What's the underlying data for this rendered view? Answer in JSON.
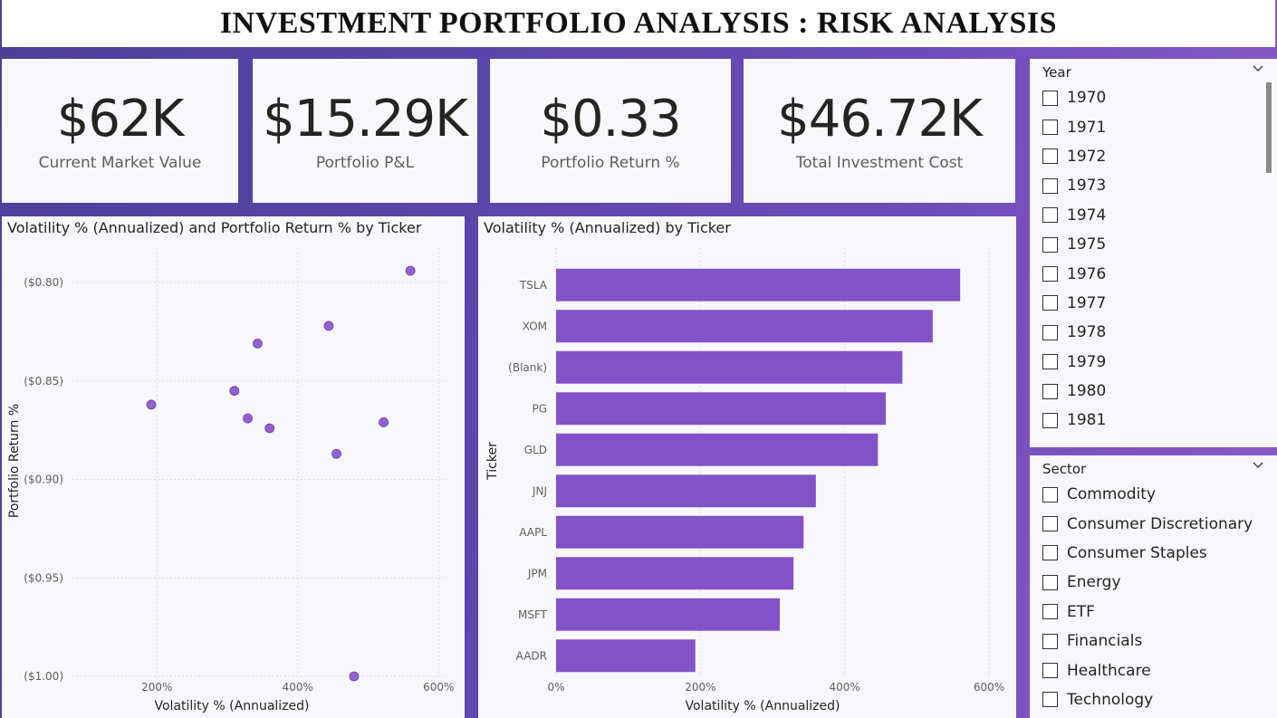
{
  "header": {
    "title": "INVESTMENT PORTFOLIO ANALYSIS : RISK ANALYSIS"
  },
  "kpis": [
    {
      "value": "$62K",
      "label": "Current Market Value"
    },
    {
      "value": "$15.29K",
      "label": "Portfolio P&L"
    },
    {
      "value": "$0.33",
      "label": "Portfolio Return %"
    },
    {
      "value": "$46.72K",
      "label": "Total Investment Cost"
    }
  ],
  "colors": {
    "accent": "#8452c8",
    "point": "#9161cf",
    "bg": "#f8f7fb",
    "grid": "#d8d6dc"
  },
  "chart_data": [
    {
      "type": "scatter",
      "title": "Volatility % (Annualized) and Portfolio Return % by Ticker",
      "xlabel": "Volatility % (Annualized)",
      "ylabel": "Portfolio Return %",
      "x_ticks": [
        "200%",
        "400%",
        "600%"
      ],
      "y_ticks": [
        "($0.80)",
        "($0.85)",
        "($0.90)",
        "($0.95)",
        "($1.00)"
      ],
      "xlim": [
        0.8,
        6.1
      ],
      "ylim": [
        -1.0,
        -0.794
      ],
      "grid": true,
      "points": [
        {
          "x": 1.92,
          "y": -0.862
        },
        {
          "x": 3.1,
          "y": -0.855
        },
        {
          "x": 3.29,
          "y": -0.869
        },
        {
          "x": 3.43,
          "y": -0.831
        },
        {
          "x": 3.6,
          "y": -0.874
        },
        {
          "x": 4.44,
          "y": -0.822
        },
        {
          "x": 4.55,
          "y": -0.887
        },
        {
          "x": 5.22,
          "y": -0.871
        },
        {
          "x": 5.6,
          "y": -0.794
        },
        {
          "x": 4.8,
          "y": -1.0
        }
      ]
    },
    {
      "type": "bar",
      "orientation": "horizontal",
      "title": "Volatility % (Annualized) by Ticker",
      "xlabel": "Volatility % (Annualized)",
      "ylabel": "Ticker",
      "x_ticks": [
        "0%",
        "200%",
        "400%",
        "600%"
      ],
      "xlim": [
        0,
        6.1
      ],
      "grid": true,
      "categories": [
        "TSLA",
        "XOM",
        "(Blank)",
        "PG",
        "GLD",
        "JNJ",
        "AAPL",
        "JPM",
        "MSFT",
        "AADR"
      ],
      "values": [
        5.6,
        5.22,
        4.8,
        4.57,
        4.46,
        3.6,
        3.43,
        3.29,
        3.1,
        1.93
      ]
    }
  ],
  "slicers": {
    "year": {
      "title": "Year",
      "items": [
        "1970",
        "1971",
        "1972",
        "1973",
        "1974",
        "1975",
        "1976",
        "1977",
        "1978",
        "1979",
        "1980",
        "1981"
      ]
    },
    "sector": {
      "title": "Sector",
      "items": [
        "Commodity",
        "Consumer Discretionary",
        "Consumer Staples",
        "Energy",
        "ETF",
        "Financials",
        "Healthcare",
        "Technology"
      ]
    }
  }
}
